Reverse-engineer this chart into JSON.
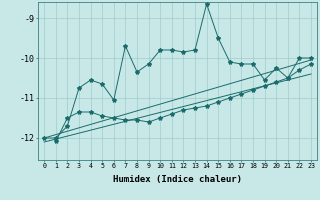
{
  "xlabel": "Humidex (Indice chaleur)",
  "bg_color": "#c8e8e8",
  "grid_color": "#a0cccc",
  "line_color": "#1a6b6b",
  "xlim": [
    -0.5,
    23.5
  ],
  "ylim": [
    -12.55,
    -8.6
  ],
  "yticks": [
    -12,
    -11,
    -10,
    -9
  ],
  "xticks": [
    0,
    1,
    2,
    3,
    4,
    5,
    6,
    7,
    8,
    9,
    10,
    11,
    12,
    13,
    14,
    15,
    16,
    17,
    18,
    19,
    20,
    21,
    22,
    23
  ],
  "line1_x": [
    0,
    1,
    2,
    3,
    4,
    5,
    6,
    7,
    8,
    9,
    10,
    11,
    12,
    13,
    14,
    15,
    16,
    17,
    18,
    19,
    20,
    21,
    22,
    23
  ],
  "line1_y": [
    -12.0,
    -12.0,
    -11.7,
    -10.75,
    -10.55,
    -10.65,
    -11.05,
    -9.7,
    -10.35,
    -10.15,
    -9.8,
    -9.8,
    -9.85,
    -9.8,
    -8.65,
    -9.5,
    -10.1,
    -10.15,
    -10.15,
    -10.55,
    -10.25,
    -10.5,
    -10.0,
    -10.0
  ],
  "line2_x": [
    1,
    2,
    3,
    4,
    5,
    6,
    7,
    8,
    9,
    10,
    11,
    12,
    13,
    14,
    15,
    16,
    17,
    18,
    19,
    20,
    21,
    22,
    23
  ],
  "line2_y": [
    -12.08,
    -11.5,
    -11.35,
    -11.35,
    -11.45,
    -11.5,
    -11.55,
    -11.55,
    -11.6,
    -11.5,
    -11.4,
    -11.3,
    -11.25,
    -11.2,
    -11.1,
    -11.0,
    -10.9,
    -10.8,
    -10.7,
    -10.6,
    -10.5,
    -10.3,
    -10.15
  ],
  "line3_x": [
    0,
    23
  ],
  "line3_y": [
    -12.0,
    -10.05
  ],
  "line4_x": [
    0,
    23
  ],
  "line4_y": [
    -12.1,
    -10.4
  ]
}
